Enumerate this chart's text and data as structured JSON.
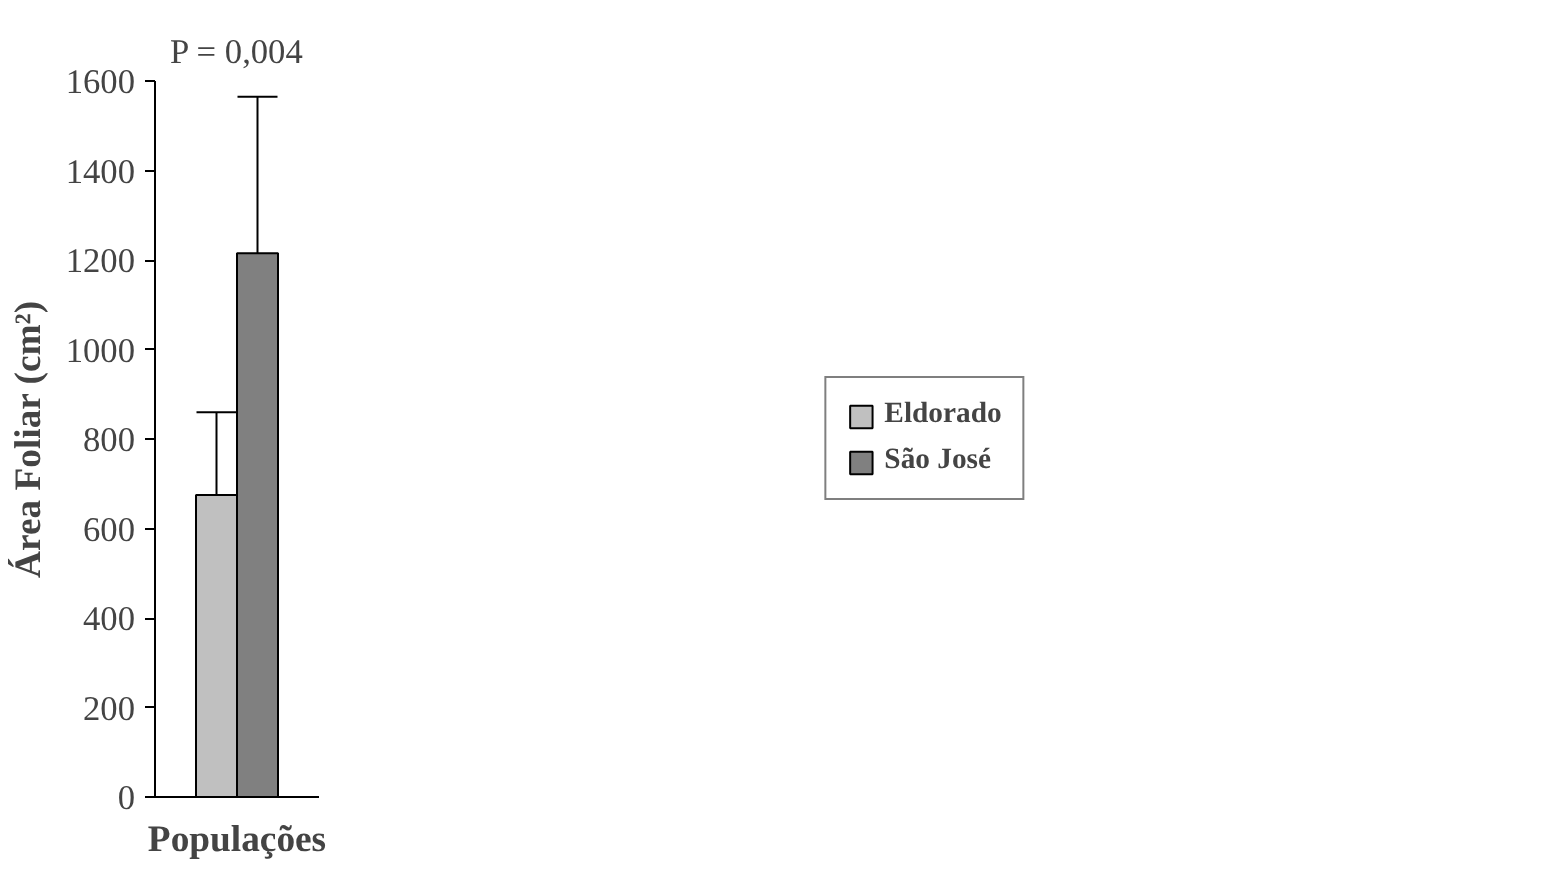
{
  "chart_data": {
    "type": "bar",
    "categories": [
      null
    ],
    "series": [
      {
        "name": "Eldorado",
        "color": "#c0c0c0",
        "values": [
          675
        ],
        "errors": [
          [
            675,
            860
          ]
        ]
      },
      {
        "name": "São José",
        "color": "#808080",
        "values": [
          1215
        ],
        "errors": [
          [
            1215,
            1565
          ]
        ]
      }
    ],
    "ylabel": "Área Foliar (cm²)",
    "xlabel": "Populações",
    "annotations": [
      "P = 0,004"
    ],
    "ylim": [
      0,
      1600
    ],
    "yticks": [
      0,
      200,
      400,
      600,
      800,
      1000,
      1200,
      1400,
      1600
    ],
    "grid": false,
    "legend": "right"
  }
}
